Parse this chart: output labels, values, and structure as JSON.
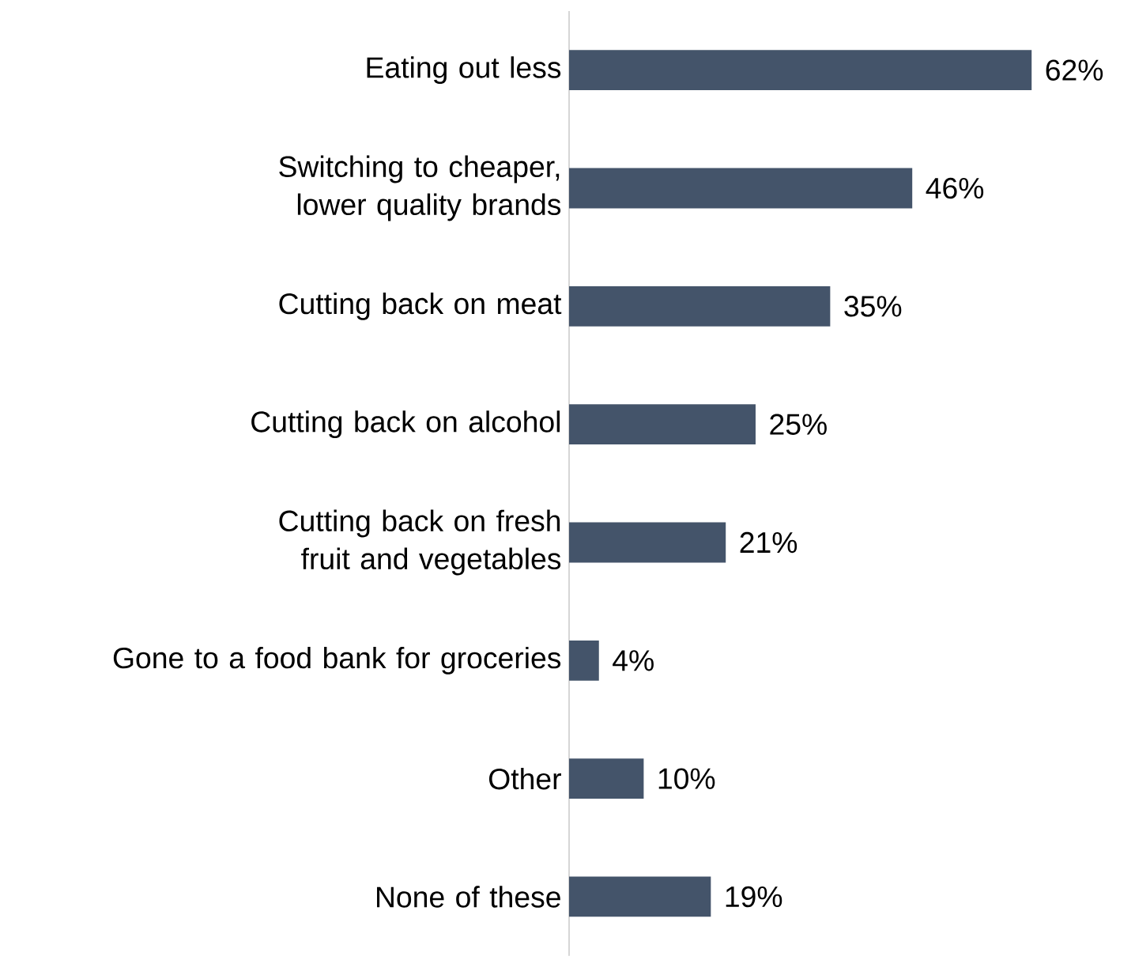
{
  "chart_data": {
    "type": "bar",
    "orientation": "horizontal",
    "categories": [
      "Eating out less",
      "Switching to cheaper, lower quality brands",
      "Cutting back on meat",
      "Cutting back on alcohol",
      "Cutting back on fresh fruit and vegetables",
      "Gone to a food bank for groceries",
      "Other",
      "None of these"
    ],
    "values": [
      62,
      46,
      35,
      25,
      21,
      4,
      10,
      19
    ],
    "value_labels": [
      "62%",
      "46%",
      "35%",
      "25%",
      "21%",
      "4%",
      "10%",
      "19%"
    ],
    "color": "#44546a",
    "tick_labels": "y",
    "grid": false
  }
}
